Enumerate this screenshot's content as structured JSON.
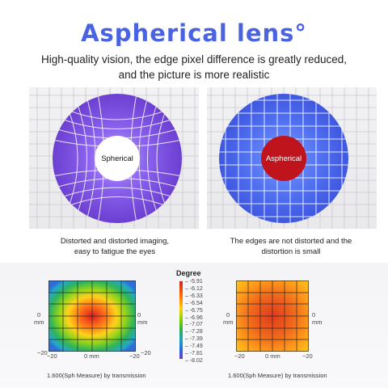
{
  "title": "Aspherical lens°",
  "subtitle_line1": "High-quality vision, the edge pixel difference is greatly reduced,",
  "subtitle_line2": "and the picture is more realistic",
  "left_panel": {
    "lens_label": "Spherical",
    "caption_line1": "Distorted and distorted imaging,",
    "caption_line2": "easy to fatigue the eyes"
  },
  "right_panel": {
    "lens_label": "Aspherical",
    "caption_line1": "The edges are not distorted and the",
    "caption_line2": "distortion is small"
  },
  "legend": {
    "title": "Degree",
    "ticks": [
      "-5.91",
      "-6.12",
      "-6.33",
      "-6.54",
      "-6.75",
      "-6.96",
      "-7.07",
      "-7.28",
      "-7.39",
      "-7.49",
      "-7.81",
      "-8.02"
    ]
  },
  "heatmap_axes": {
    "top_left": "20",
    "zero": "0",
    "unit": "mm",
    "bottom_left": "−20",
    "bottom_center": "0 mm",
    "bottom_right": "−20"
  },
  "measure_left": "1.600(Sph Measure) by transmission",
  "measure_right": "1.600(Sph Measure) by transmission",
  "colors": {
    "title": "#4a63e0",
    "spherical_center": "#ffffff",
    "aspherical_center": "#c0141c",
    "spherical_lens": "#7a4fd6",
    "aspherical_lens": "#4f6ff0"
  }
}
